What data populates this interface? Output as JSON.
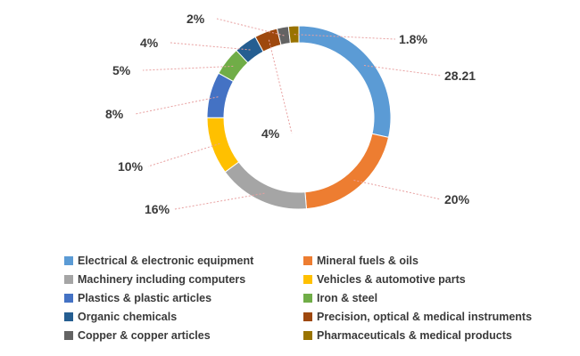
{
  "chart_data": {
    "type": "pie",
    "donut": true,
    "title": "",
    "legend_position": "bottom",
    "categories": [
      "Electrical & electronic equipment",
      "Mineral fuels & oils",
      "Machinery including computers",
      "Vehicles & automotive parts",
      "Plastics & plastic articles",
      "Iron & steel",
      "Organic chemicals",
      "Precision, optical & medical instruments",
      "Copper & copper articles",
      "Pharmaceuticals & medical products"
    ],
    "values": [
      28.21,
      20,
      16,
      10,
      8,
      5,
      4,
      4,
      2,
      1.8
    ],
    "labels": [
      "28.21",
      "20%",
      "16%",
      "10%",
      "8%",
      "5%",
      "4%",
      "4%",
      "2%",
      "1.8%"
    ],
    "colors": [
      "#5B9BD5",
      "#ED7D31",
      "#A5A5A5",
      "#FFC000",
      "#4472C4",
      "#70AD47",
      "#255E91",
      "#9E480E",
      "#636363",
      "#997300"
    ]
  }
}
